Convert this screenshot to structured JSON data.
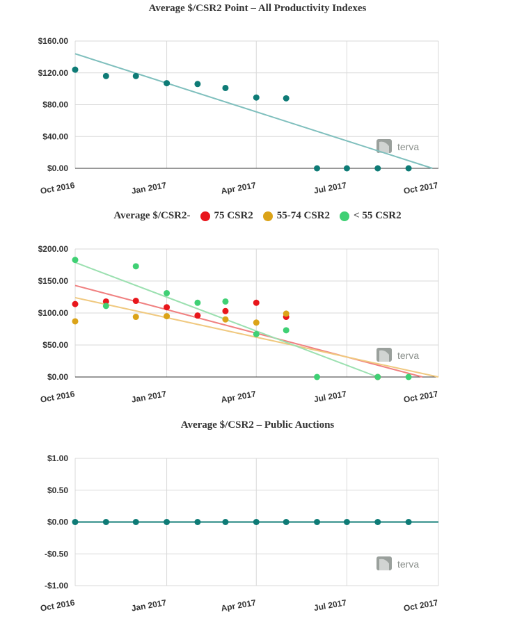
{
  "chart_data": [
    {
      "type": "scatter",
      "title": "Average $/CSR2 Point – All Productivity Indexes",
      "x_tick_labels": [
        "Oct 2016",
        "Jan 2017",
        "Apr 2017",
        "Jul 2017",
        "Oct 2017"
      ],
      "y_tick_labels": [
        "$160.00",
        "$120.00",
        "$80.00",
        "$40.00",
        "$0.00"
      ],
      "ylim": [
        0,
        160
      ],
      "grid": true,
      "logo": "terva",
      "series": [
        {
          "color": "#0e7b76",
          "x": [
            "2016-10-01",
            "2016-11-01",
            "2016-12-01",
            "2017-01-01",
            "2017-02-01",
            "2017-03-01",
            "2017-04-01",
            "2017-05-01",
            "2017-06-01",
            "2017-07-01",
            "2017-08-01",
            "2017-09-01"
          ],
          "y": [
            124,
            116,
            116,
            107,
            106,
            101,
            89,
            88,
            0,
            0,
            0,
            0
          ],
          "trendline": {
            "color": "#7fbfbd",
            "from": [
              "2016-10-01",
              144
            ],
            "to": [
              "2017-09-25",
              0
            ]
          }
        }
      ]
    },
    {
      "type": "scatter",
      "title": "Average $/CSR2-",
      "legend": [
        {
          "label": "75 CSR2",
          "color": "#e8161c"
        },
        {
          "label": "55-74 CSR2",
          "color": "#dba318"
        },
        {
          "label": "< 55 CSR2",
          "color": "#3fd074"
        }
      ],
      "x_tick_labels": [
        "Oct 2016",
        "Jan 2017",
        "Apr 2017",
        "Jul 2017",
        "Oct 2017"
      ],
      "y_tick_labels": [
        "$200.00",
        "$150.00",
        "$100.00",
        "$50.00",
        "$0.00"
      ],
      "ylim": [
        0,
        200
      ],
      "grid": true,
      "logo": "terva",
      "series": [
        {
          "color": "#e8161c",
          "x": [
            "2016-10-01",
            "2016-11-01",
            "2016-12-01",
            "2017-01-01",
            "2017-02-01",
            "2017-03-01",
            "2017-04-01",
            "2017-05-01",
            "2017-08-01"
          ],
          "y": [
            114,
            118,
            119,
            109,
            96,
            103,
            116,
            94,
            0
          ],
          "trendline": {
            "color": "#f08080",
            "from": [
              "2016-10-01",
              143
            ],
            "to": [
              "2017-09-15",
              0
            ]
          }
        },
        {
          "color": "#dba318",
          "x": [
            "2016-10-01",
            "2016-12-01",
            "2017-01-01",
            "2017-03-01",
            "2017-04-01",
            "2017-05-01"
          ],
          "y": [
            87,
            94,
            95,
            90,
            85,
            99
          ],
          "trendline": {
            "color": "#f0c980",
            "from": [
              "2016-10-01",
              124
            ],
            "to": [
              "2017-10-01",
              0
            ]
          }
        },
        {
          "color": "#3fd074",
          "x": [
            "2016-10-01",
            "2016-11-01",
            "2016-12-01",
            "2017-01-01",
            "2017-02-01",
            "2017-03-01",
            "2017-04-01",
            "2017-05-01",
            "2017-06-01",
            "2017-08-01",
            "2017-09-01"
          ],
          "y": [
            183,
            111,
            173,
            131,
            116,
            118,
            67,
            73,
            0,
            0,
            0
          ],
          "trendline": {
            "color": "#9be0b0",
            "from": [
              "2016-10-01",
              179
            ],
            "to": [
              "2017-08-01",
              0
            ]
          }
        }
      ]
    },
    {
      "type": "scatter",
      "title": "Average $/CSR2 – Public Auctions",
      "x_tick_labels": [
        "Oct 2016",
        "Jan 2017",
        "Apr 2017",
        "Jul 2017",
        "Oct 2017"
      ],
      "y_tick_labels": [
        "$1.00",
        "$0.50",
        "$0.00",
        "-$0.50",
        "-$1.00"
      ],
      "ylim": [
        -1,
        1
      ],
      "grid": true,
      "logo": "terva",
      "series": [
        {
          "color": "#0e7b76",
          "x": [
            "2016-10-01",
            "2016-11-01",
            "2016-12-01",
            "2017-01-01",
            "2017-02-01",
            "2017-03-01",
            "2017-04-01",
            "2017-05-01",
            "2017-06-01",
            "2017-07-01",
            "2017-08-01",
            "2017-09-01"
          ],
          "y": [
            0,
            0,
            0,
            0,
            0,
            0,
            0,
            0,
            0,
            0,
            0,
            0
          ],
          "trendline": {
            "color": "#0e7b76",
            "from": [
              "2016-10-01",
              0
            ],
            "to": [
              "2017-10-01",
              0
            ]
          }
        }
      ]
    }
  ]
}
